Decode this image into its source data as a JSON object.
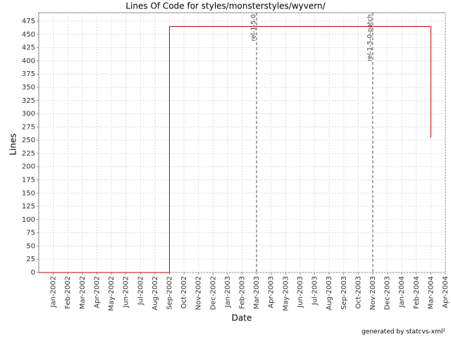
{
  "chart_data": {
    "type": "step-line",
    "title": "Lines Of Code for styles/monsterstyles/wyvern/",
    "xlabel": "Date",
    "ylabel": "Lines",
    "footer": "generated by statcvs-xml²",
    "series": [
      {
        "name": "Lines",
        "color": "#c00000",
        "x": [
          "2001-12",
          "2002-09",
          "2004-03"
        ],
        "values": [
          0,
          465,
          255
        ]
      }
    ],
    "annotations": [
      {
        "x": "2003-03",
        "label": "rel-1-5-0"
      },
      {
        "x": "2003-11",
        "label": "rel-1-5-0-patch"
      }
    ],
    "xlim": [
      "2001-12",
      "2004-04"
    ],
    "xticks": [
      {
        "value": "2002-01",
        "label": "Jan-2002"
      },
      {
        "value": "2002-02",
        "label": "Feb-2002"
      },
      {
        "value": "2002-03",
        "label": "Mar-2002"
      },
      {
        "value": "2002-04",
        "label": "Apr-2002"
      },
      {
        "value": "2002-05",
        "label": "May-2002"
      },
      {
        "value": "2002-06",
        "label": "Jun-2002"
      },
      {
        "value": "2002-07",
        "label": "Jul-2002"
      },
      {
        "value": "2002-08",
        "label": "Aug-2002"
      },
      {
        "value": "2002-09",
        "label": "Sep-2002"
      },
      {
        "value": "2002-10",
        "label": "Oct-2002"
      },
      {
        "value": "2002-11",
        "label": "Nov-2002"
      },
      {
        "value": "2002-12",
        "label": "Dec-2002"
      },
      {
        "value": "2003-01",
        "label": "Jan-2003"
      },
      {
        "value": "2003-02",
        "label": "Feb-2003"
      },
      {
        "value": "2003-03",
        "label": "Mar-2003"
      },
      {
        "value": "2003-04",
        "label": "Apr-2003"
      },
      {
        "value": "2003-05",
        "label": "May-2003"
      },
      {
        "value": "2003-06",
        "label": "Jun-2003"
      },
      {
        "value": "2003-07",
        "label": "Jul-2003"
      },
      {
        "value": "2003-08",
        "label": "Aug-2003"
      },
      {
        "value": "2003-09",
        "label": "Sep-2003"
      },
      {
        "value": "2003-10",
        "label": "Oct-2003"
      },
      {
        "value": "2003-11",
        "label": "Nov-2003"
      },
      {
        "value": "2003-12",
        "label": "Dec-2003"
      },
      {
        "value": "2004-01",
        "label": "Jan-2004"
      },
      {
        "value": "2004-02",
        "label": "Feb-2004"
      },
      {
        "value": "2004-03",
        "label": "Mar-2004"
      },
      {
        "value": "2004-04",
        "label": "Apr-2004"
      }
    ],
    "ylim": [
      0,
      491
    ],
    "yticks": [
      0,
      25,
      50,
      75,
      100,
      125,
      150,
      175,
      200,
      225,
      250,
      275,
      300,
      325,
      350,
      375,
      400,
      425,
      450,
      475
    ],
    "grid": true
  }
}
